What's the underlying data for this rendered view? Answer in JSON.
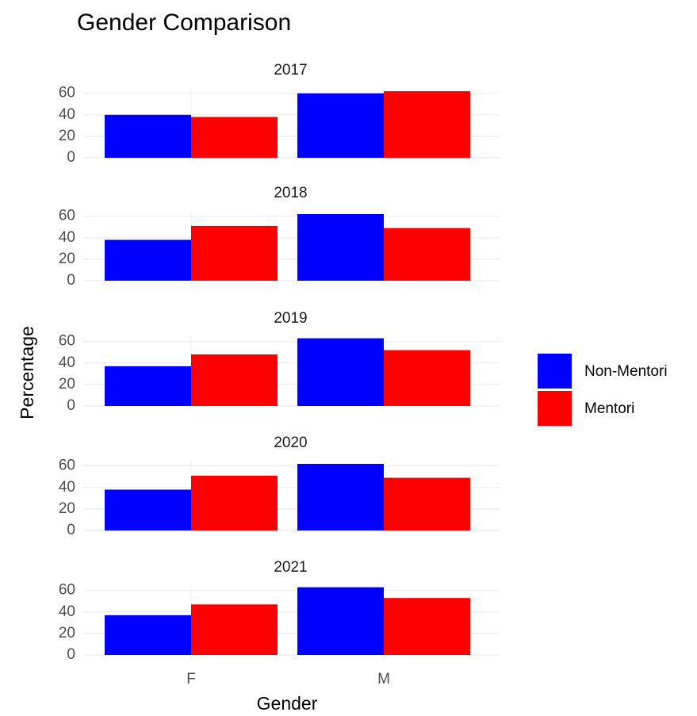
{
  "chart_data": {
    "type": "bar",
    "title": "Gender Comparison",
    "x_label": "Gender",
    "y_label": "Percentage",
    "categories": [
      "F",
      "M"
    ],
    "series": [
      {
        "name": "Non-Mentori",
        "color": "#0000ff"
      },
      {
        "name": "Mentori",
        "color": "#ff0000"
      }
    ],
    "ylim": [
      0,
      65
    ],
    "yticks": [
      0,
      20,
      40,
      60
    ],
    "grid": true,
    "facets": [
      {
        "title": "2017",
        "series": [
          {
            "values": [
              40,
              60
            ]
          },
          {
            "values": [
              38,
              62
            ]
          }
        ]
      },
      {
        "title": "2018",
        "series": [
          {
            "values": [
              38,
              62
            ]
          },
          {
            "values": [
              51,
              49
            ]
          }
        ]
      },
      {
        "title": "2019",
        "series": [
          {
            "values": [
              37,
              63
            ]
          },
          {
            "values": [
              48,
              52
            ]
          }
        ]
      },
      {
        "title": "2020",
        "series": [
          {
            "values": [
              38,
              62
            ]
          },
          {
            "values": [
              51,
              49
            ]
          }
        ]
      },
      {
        "title": "2021",
        "series": [
          {
            "values": [
              37,
              63
            ]
          },
          {
            "values": [
              47,
              53
            ]
          }
        ]
      }
    ]
  }
}
